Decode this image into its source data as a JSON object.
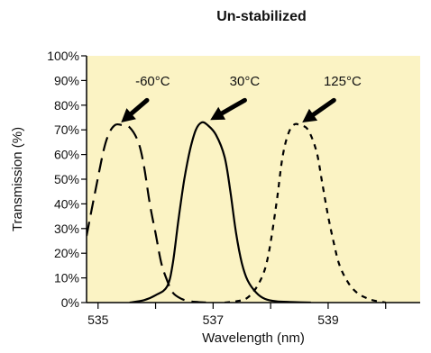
{
  "chart_data": {
    "type": "line",
    "title": "Un-stabilized",
    "xlabel": "Wavelength (nm)",
    "ylabel": "Transmission (%)",
    "xlim": [
      534.8,
      540.6
    ],
    "ylim": [
      0,
      100
    ],
    "x_ticks": [
      535,
      537,
      539
    ],
    "x_tick_labels": [
      "535",
      "537",
      "539"
    ],
    "y_ticks": [
      0,
      10,
      20,
      30,
      40,
      50,
      60,
      70,
      80,
      90,
      100
    ],
    "y_tick_labels": [
      "0%",
      "10%",
      "20%",
      "30%",
      "40%",
      "50%",
      "60%",
      "70%",
      "80%",
      "90%",
      "100%"
    ],
    "plot_background": "#fbf3c4",
    "line_color": "#000000",
    "grid": false,
    "legend": "none",
    "series": [
      {
        "name": "-60°C",
        "line_style": "long-dash",
        "x": [
          534.8,
          534.95,
          535.1,
          535.2,
          535.3,
          535.4,
          535.55,
          535.7,
          535.8,
          535.9,
          536.0,
          536.1,
          536.2,
          536.3,
          536.45,
          536.6,
          536.75,
          536.9
        ],
        "y": [
          27,
          45,
          62,
          69,
          72,
          72,
          71,
          65,
          55,
          40,
          28,
          16,
          9,
          4,
          1.5,
          0.5,
          0.2,
          0
        ]
      },
      {
        "name": "30°C",
        "line_style": "solid",
        "x": [
          535.55,
          535.8,
          536.0,
          536.2,
          536.3,
          536.4,
          536.5,
          536.6,
          536.7,
          536.8,
          536.9,
          537.05,
          537.2,
          537.3,
          537.4,
          537.5,
          537.6,
          537.75,
          537.9,
          538.1,
          538.4,
          538.7
        ],
        "y": [
          0,
          1,
          3,
          6.5,
          16,
          34,
          50,
          62,
          70,
          73,
          72,
          68,
          59,
          45,
          28,
          16,
          9,
          4,
          1.5,
          0.5,
          0.2,
          0
        ]
      },
      {
        "name": "125°C",
        "line_style": "short-dash",
        "x": [
          537.2,
          537.4,
          537.6,
          537.8,
          537.95,
          538.1,
          538.2,
          538.3,
          538.4,
          538.5,
          538.65,
          538.8,
          538.9,
          539.0,
          539.1,
          539.2,
          539.35,
          539.5,
          539.65,
          539.8,
          540.0
        ],
        "y": [
          0,
          0.5,
          2,
          8,
          18,
          40,
          58,
          68,
          72,
          72,
          70,
          61,
          48,
          35,
          24,
          15,
          8,
          4,
          2,
          0.8,
          0
        ]
      }
    ],
    "annotations": [
      {
        "text": "-60°C",
        "text_x": 535.95,
        "text_y": 88,
        "arrow_from_x": 535.85,
        "arrow_from_y": 82,
        "arrow_to_x": 535.4,
        "arrow_to_y": 73
      },
      {
        "text": "30°C",
        "text_x": 537.55,
        "text_y": 88,
        "arrow_from_x": 537.55,
        "arrow_from_y": 82,
        "arrow_to_x": 536.95,
        "arrow_to_y": 74
      },
      {
        "text": "125°C",
        "text_x": 539.25,
        "text_y": 88,
        "arrow_from_x": 539.1,
        "arrow_from_y": 82,
        "arrow_to_x": 538.55,
        "arrow_to_y": 73
      }
    ]
  }
}
